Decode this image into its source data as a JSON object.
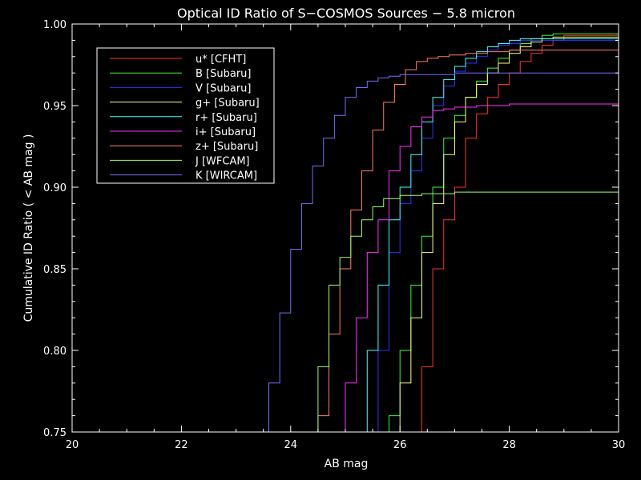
{
  "chart_data": {
    "type": "line",
    "step": true,
    "title": "Optical ID Ratio of S−COSMOS Sources − 5.8 micron",
    "xlabel": "AB mag",
    "ylabel": "Cumulative ID Ratio ( < AB mag )",
    "xlim": [
      20,
      30
    ],
    "ylim": [
      0.75,
      1.0
    ],
    "xticks": [
      20,
      22,
      24,
      26,
      28,
      30
    ],
    "xtick_labels": [
      "20",
      "22",
      "24",
      "26",
      "28",
      "30"
    ],
    "yticks": [
      0.75,
      0.8,
      0.85,
      0.9,
      0.95,
      1.0
    ],
    "ytick_labels": [
      "0.75",
      "0.80",
      "0.85",
      "0.90",
      "0.95",
      "1.00"
    ],
    "legend_position": "top-left",
    "background": "#000000",
    "foreground": "#ffffff",
    "series": [
      {
        "name": "u* [CFHT]",
        "color": "#ff3030",
        "x": [
          26.2,
          26.4,
          26.6,
          26.8,
          27.0,
          27.2,
          27.4,
          27.6,
          27.8,
          28.0,
          28.2,
          28.4,
          28.6,
          28.8,
          29.0,
          30.0
        ],
        "y": [
          0.73,
          0.79,
          0.85,
          0.88,
          0.9,
          0.93,
          0.945,
          0.955,
          0.963,
          0.97,
          0.977,
          0.982,
          0.987,
          0.99,
          0.993,
          0.993
        ]
      },
      {
        "name": "B [Subaru]",
        "color": "#30ff30",
        "x": [
          25.6,
          25.8,
          26.0,
          26.2,
          26.4,
          26.6,
          26.8,
          27.0,
          27.2,
          27.4,
          27.6,
          27.8,
          28.0,
          28.2,
          28.4,
          28.6,
          28.8,
          30.0
        ],
        "y": [
          0.73,
          0.76,
          0.8,
          0.84,
          0.87,
          0.9,
          0.93,
          0.944,
          0.955,
          0.965,
          0.973,
          0.979,
          0.984,
          0.988,
          0.991,
          0.993,
          0.994,
          0.994
        ]
      },
      {
        "name": "V [Subaru]",
        "color": "#3030ff",
        "x": [
          25.4,
          25.6,
          25.8,
          26.0,
          26.2,
          26.4,
          26.6,
          26.8,
          27.0,
          27.2,
          27.4,
          27.6,
          27.8,
          28.0,
          28.2,
          30.0
        ],
        "y": [
          0.73,
          0.8,
          0.86,
          0.89,
          0.91,
          0.93,
          0.95,
          0.962,
          0.971,
          0.976,
          0.98,
          0.984,
          0.987,
          0.988,
          0.99,
          0.99
        ]
      },
      {
        "name": "g+ [Subaru]",
        "color": "#ffff70",
        "x": [
          25.8,
          26.0,
          26.2,
          26.4,
          26.6,
          26.8,
          27.0,
          27.2,
          27.4,
          27.6,
          27.8,
          28.0,
          28.2,
          28.4,
          28.6,
          28.8,
          30.0
        ],
        "y": [
          0.73,
          0.78,
          0.82,
          0.86,
          0.89,
          0.92,
          0.94,
          0.955,
          0.963,
          0.97,
          0.976,
          0.982,
          0.986,
          0.989,
          0.991,
          0.992,
          0.992
        ]
      },
      {
        "name": "r+ [Subaru]",
        "color": "#40ffff",
        "x": [
          25.2,
          25.4,
          25.6,
          25.8,
          26.0,
          26.2,
          26.4,
          26.6,
          26.8,
          27.0,
          27.2,
          27.4,
          27.6,
          27.8,
          28.0,
          28.2,
          30.0
        ],
        "y": [
          0.73,
          0.8,
          0.84,
          0.88,
          0.9,
          0.92,
          0.94,
          0.955,
          0.966,
          0.974,
          0.979,
          0.983,
          0.986,
          0.988,
          0.99,
          0.991,
          0.991
        ]
      },
      {
        "name": "i+ [Subaru]",
        "color": "#ff30ff",
        "x": [
          24.8,
          25.0,
          25.2,
          25.4,
          25.6,
          25.8,
          26.0,
          26.2,
          26.4,
          26.6,
          26.8,
          27.0,
          27.4,
          28.0,
          30.0
        ],
        "y": [
          0.73,
          0.78,
          0.82,
          0.86,
          0.88,
          0.91,
          0.925,
          0.937,
          0.943,
          0.947,
          0.948,
          0.949,
          0.95,
          0.951,
          0.951
        ]
      },
      {
        "name": "z+ [Subaru]",
        "color": "#ff8060",
        "x": [
          24.3,
          24.5,
          24.7,
          24.9,
          25.1,
          25.3,
          25.5,
          25.7,
          25.9,
          26.1,
          26.3,
          26.5,
          26.7,
          26.9,
          27.2,
          27.6,
          28.0,
          30.0
        ],
        "y": [
          0.73,
          0.76,
          0.81,
          0.85,
          0.886,
          0.91,
          0.935,
          0.952,
          0.963,
          0.972,
          0.977,
          0.979,
          0.98,
          0.981,
          0.982,
          0.983,
          0.984,
          0.984
        ]
      },
      {
        "name": "J [WFCAM]",
        "color": "#a0ff60",
        "x": [
          24.3,
          24.5,
          24.7,
          24.9,
          25.1,
          25.3,
          25.5,
          25.7,
          26.0,
          26.4,
          27.0,
          30.0
        ],
        "y": [
          0.73,
          0.79,
          0.84,
          0.857,
          0.87,
          0.88,
          0.888,
          0.893,
          0.895,
          0.896,
          0.897,
          0.897
        ]
      },
      {
        "name": "K [WIRCAM]",
        "color": "#7070ff",
        "x": [
          23.4,
          23.6,
          23.8,
          24.0,
          24.2,
          24.4,
          24.6,
          24.8,
          25.0,
          25.2,
          25.4,
          25.6,
          25.8,
          26.0,
          26.4,
          27.0,
          28.0,
          30.0
        ],
        "y": [
          0.73,
          0.78,
          0.823,
          0.862,
          0.89,
          0.913,
          0.93,
          0.944,
          0.955,
          0.961,
          0.965,
          0.967,
          0.968,
          0.969,
          0.969,
          0.97,
          0.97,
          0.97
        ]
      }
    ]
  }
}
